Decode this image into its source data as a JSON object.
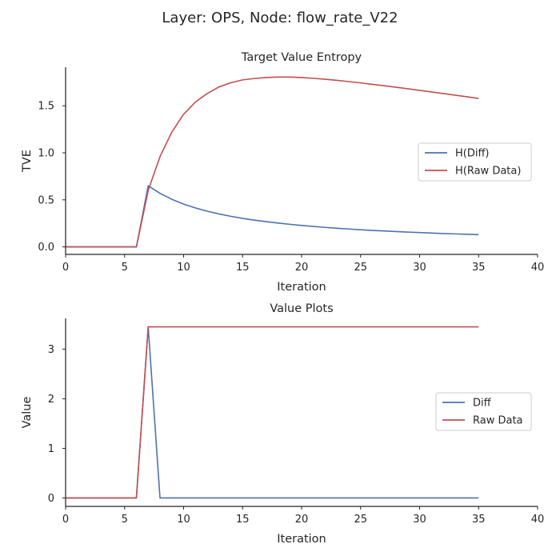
{
  "suptitle": "Layer: OPS, Node: flow_rate_V22",
  "colors": {
    "diff": "#4c72b0",
    "raw": "#c44e52",
    "text": "#262626"
  },
  "chart_data": [
    {
      "type": "line",
      "title": "Target Value Entropy",
      "xlabel": "Iteration",
      "ylabel": "TVE",
      "xlim": [
        0,
        40
      ],
      "ylim": [
        -0.08,
        1.91
      ],
      "xticks": [
        0,
        5,
        10,
        15,
        20,
        25,
        30,
        35,
        40
      ],
      "yticks": [
        0.0,
        0.5,
        1.0,
        1.5
      ],
      "ytick_labels": [
        "0.0",
        "0.5",
        "1.0",
        "1.5"
      ],
      "grid": false,
      "legend_placement": "center-right",
      "series": [
        {
          "name": "H(Diff)",
          "color": "#4c72b0",
          "x": [
            0,
            1,
            2,
            3,
            4,
            5,
            6,
            7,
            8,
            9,
            10,
            11,
            12,
            13,
            14,
            15,
            16,
            17,
            18,
            19,
            20,
            21,
            22,
            23,
            24,
            25,
            26,
            27,
            28,
            29,
            30,
            31,
            32,
            33,
            34,
            35
          ],
          "y": [
            0,
            0,
            0,
            0,
            0,
            0,
            0,
            0.65,
            0.569,
            0.506,
            0.455,
            0.414,
            0.379,
            0.35,
            0.325,
            0.303,
            0.284,
            0.268,
            0.253,
            0.24,
            0.228,
            0.217,
            0.207,
            0.198,
            0.19,
            0.182,
            0.175,
            0.169,
            0.163,
            0.157,
            0.152,
            0.147,
            0.142,
            0.138,
            0.134,
            0.13
          ]
        },
        {
          "name": "H(Raw Data)",
          "color": "#c44e52",
          "x": [
            0,
            1,
            2,
            3,
            4,
            5,
            6,
            7,
            8,
            9,
            10,
            11,
            12,
            13,
            14,
            15,
            16,
            17,
            18,
            19,
            20,
            21,
            22,
            23,
            24,
            25,
            26,
            27,
            28,
            29,
            30,
            31,
            32,
            33,
            34,
            35
          ],
          "y": [
            0,
            0,
            0,
            0,
            0,
            0,
            0,
            0.6,
            0.96,
            1.22,
            1.41,
            1.54,
            1.63,
            1.7,
            1.745,
            1.775,
            1.79,
            1.8,
            1.805,
            1.805,
            1.8,
            1.792,
            1.782,
            1.77,
            1.757,
            1.743,
            1.728,
            1.713,
            1.697,
            1.681,
            1.664,
            1.647,
            1.63,
            1.613,
            1.596,
            1.578
          ]
        }
      ]
    },
    {
      "type": "line",
      "title": "Value Plots",
      "xlabel": "Iteration",
      "ylabel": "Value",
      "xlim": [
        0,
        40
      ],
      "ylim": [
        -0.17,
        3.62
      ],
      "xticks": [
        0,
        5,
        10,
        15,
        20,
        25,
        30,
        35,
        40
      ],
      "yticks": [
        0,
        1,
        2,
        3
      ],
      "ytick_labels": [
        "0",
        "1",
        "2",
        "3"
      ],
      "grid": false,
      "legend_placement": "center-right",
      "series": [
        {
          "name": "Diff",
          "color": "#4c72b0",
          "x": [
            0,
            1,
            2,
            3,
            4,
            5,
            6,
            7,
            8,
            9,
            10,
            11,
            12,
            13,
            14,
            15,
            16,
            17,
            18,
            19,
            20,
            21,
            22,
            23,
            24,
            25,
            26,
            27,
            28,
            29,
            30,
            31,
            32,
            33,
            34,
            35
          ],
          "y": [
            0,
            0,
            0,
            0,
            0,
            0,
            0,
            3.45,
            0,
            0,
            0,
            0,
            0,
            0,
            0,
            0,
            0,
            0,
            0,
            0,
            0,
            0,
            0,
            0,
            0,
            0,
            0,
            0,
            0,
            0,
            0,
            0,
            0,
            0,
            0,
            0
          ]
        },
        {
          "name": "Raw Data",
          "color": "#c44e52",
          "x": [
            0,
            1,
            2,
            3,
            4,
            5,
            6,
            7,
            8,
            9,
            10,
            11,
            12,
            13,
            14,
            15,
            16,
            17,
            18,
            19,
            20,
            21,
            22,
            23,
            24,
            25,
            26,
            27,
            28,
            29,
            30,
            31,
            32,
            33,
            34,
            35
          ],
          "y": [
            0,
            0,
            0,
            0,
            0,
            0,
            0,
            3.45,
            3.45,
            3.45,
            3.45,
            3.45,
            3.45,
            3.45,
            3.45,
            3.45,
            3.45,
            3.45,
            3.45,
            3.45,
            3.45,
            3.45,
            3.45,
            3.45,
            3.45,
            3.45,
            3.45,
            3.45,
            3.45,
            3.45,
            3.45,
            3.45,
            3.45,
            3.45,
            3.45,
            3.45
          ]
        }
      ]
    }
  ]
}
